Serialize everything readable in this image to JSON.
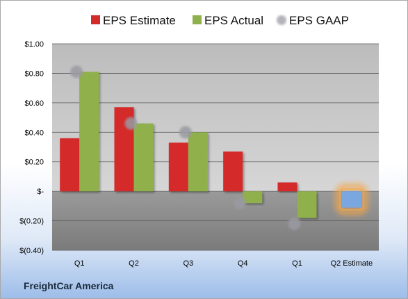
{
  "company": "FreightCar America",
  "legend": {
    "estimate": "EPS Estimate",
    "actual": "EPS Actual",
    "gaap": "EPS GAAP"
  },
  "colors": {
    "estimate": "#d42a2a",
    "actual": "#8fb04b",
    "gaap": "#9a9aa2",
    "forecast_bar": "#7aa7e0",
    "forecast_glow": "#f2a649"
  },
  "chart_data": {
    "type": "bar",
    "categories": [
      "Q1",
      "Q2",
      "Q3",
      "Q4",
      "Q1",
      "Q2 Estimate"
    ],
    "series": [
      {
        "name": "EPS Estimate",
        "values": [
          0.36,
          0.57,
          0.33,
          0.27,
          0.06,
          null
        ]
      },
      {
        "name": "EPS Actual",
        "values": [
          0.81,
          0.46,
          0.4,
          -0.08,
          -0.18,
          -0.11
        ]
      },
      {
        "name": "EPS GAAP",
        "values": [
          0.81,
          0.46,
          0.4,
          -0.08,
          -0.22,
          null
        ]
      }
    ],
    "ylim": [
      -0.4,
      1.0
    ],
    "yticks": [
      1.0,
      0.8,
      0.6,
      0.4,
      0.2,
      0.0,
      -0.2,
      -0.4
    ],
    "ytick_labels": [
      "$1.00",
      "$0.80",
      "$0.60",
      "$0.40",
      "$0.20",
      "$-",
      "$(0.20)",
      "$(0.40)"
    ],
    "grid": true,
    "legend_position": "top"
  }
}
